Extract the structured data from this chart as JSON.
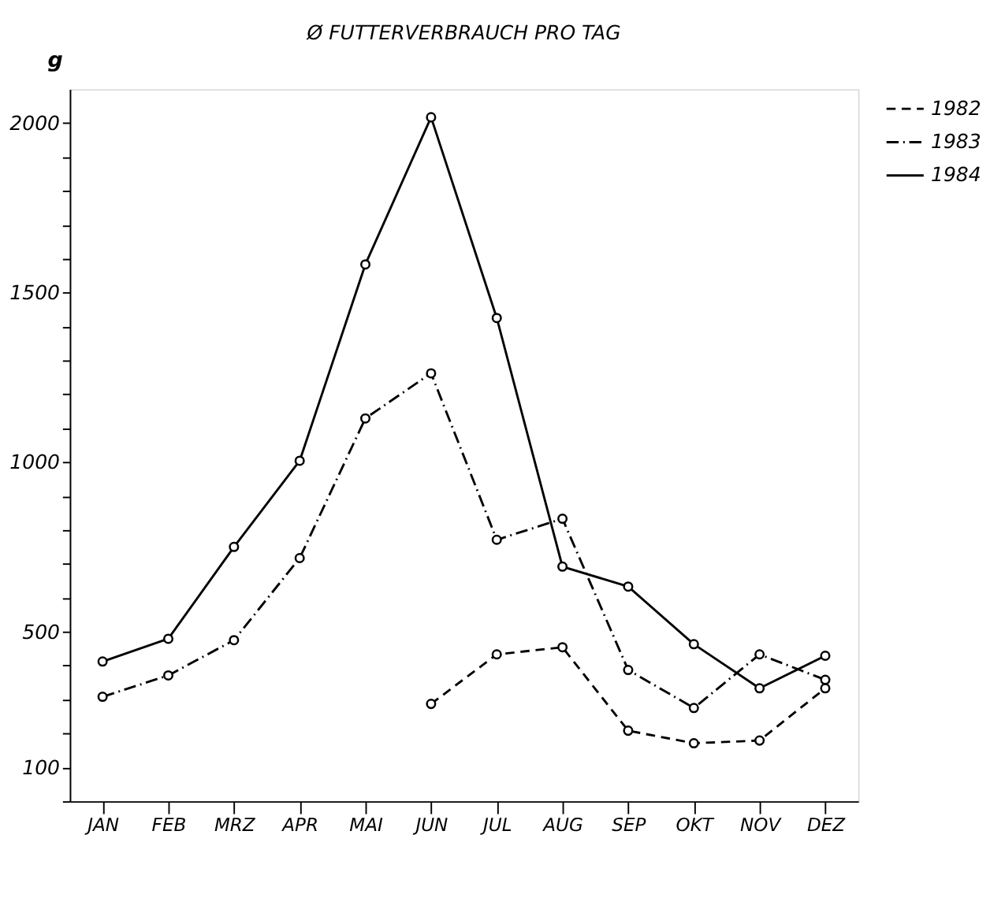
{
  "chart_data": {
    "type": "line",
    "title": "Ø FUTTERVERBRAUCH PRO TAG",
    "ylabel": "g",
    "categories": [
      "JAN",
      "FEB",
      "MRZ",
      "APR",
      "MAI",
      "JUN",
      "JUL",
      "AUG",
      "SEP",
      "OKT",
      "NOV",
      "DEZ"
    ],
    "series": [
      {
        "name": "1982",
        "color": "#000000",
        "line_style": "dashed",
        "values": [
          null,
          null,
          null,
          null,
          null,
          287,
          433,
          454,
          208,
          171,
          179,
          333
        ]
      },
      {
        "name": "1983",
        "color": "#000000",
        "line_style": "dashdot",
        "values": [
          308,
          371,
          475,
          717,
          1129,
          1262,
          771,
          833,
          387,
          275,
          433,
          358
        ]
      },
      {
        "name": "1984",
        "color": "#000000",
        "line_style": "solid",
        "values": [
          412,
          479,
          750,
          1004,
          1583,
          2017,
          1425,
          692,
          633,
          463,
          333,
          429
        ]
      }
    ],
    "ylim": [
      0,
      2100
    ],
    "yticks": [
      {
        "value": 0,
        "label": null
      },
      100,
      {
        "value": 200,
        "label": null
      },
      {
        "value": 300,
        "label": null
      },
      {
        "value": 400,
        "label": null
      },
      500,
      {
        "value": 600,
        "label": null
      },
      {
        "value": 700,
        "label": null
      },
      {
        "value": 800,
        "label": null
      },
      {
        "value": 900,
        "label": null
      },
      1000,
      {
        "value": 1100,
        "label": null
      },
      {
        "value": 1200,
        "label": null
      },
      {
        "value": 1300,
        "label": null
      },
      {
        "value": 1400,
        "label": null
      },
      1500,
      {
        "value": 1600,
        "label": null
      },
      {
        "value": 1700,
        "label": null
      },
      {
        "value": 1800,
        "label": null
      },
      {
        "value": 1900,
        "label": null
      },
      2000
    ],
    "marker": "circle",
    "grid": false,
    "legend": "right"
  }
}
